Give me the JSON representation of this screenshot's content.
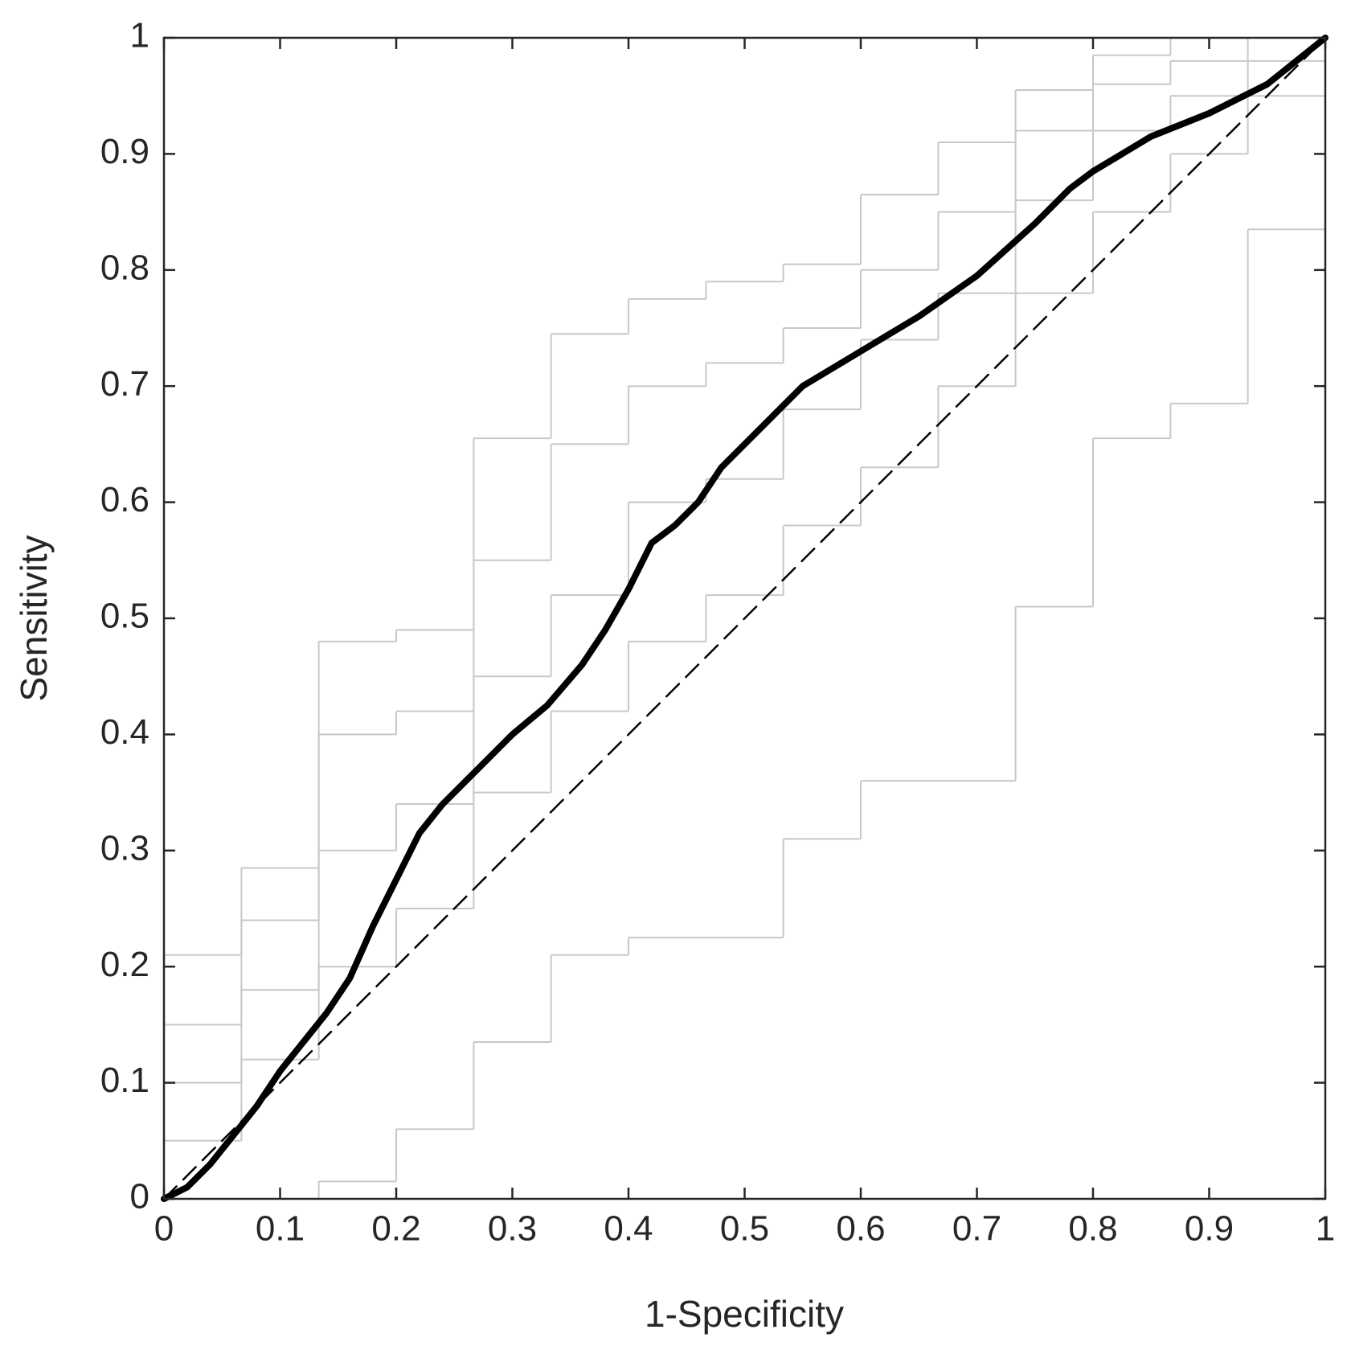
{
  "chart_data": {
    "type": "line",
    "xlabel": "1-Specificity",
    "ylabel": "Sensitivity",
    "xlim": [
      0,
      1
    ],
    "ylim": [
      0,
      1
    ],
    "xticks": [
      0,
      0.1,
      0.2,
      0.3,
      0.4,
      0.5,
      0.6,
      0.7,
      0.8,
      0.9,
      1
    ],
    "yticks": [
      0,
      0.1,
      0.2,
      0.3,
      0.4,
      0.5,
      0.6,
      0.7,
      0.8,
      0.9,
      1
    ],
    "series": [
      {
        "color": "#c8c8c8",
        "style": "step",
        "x": [
          0,
          0.0667,
          0.1333,
          0.2,
          0.2667,
          0.3333,
          0.4,
          0.4667,
          0.5333,
          0.6,
          0.6667,
          0.7333,
          0.8,
          0.8667,
          0.9333
        ],
        "values": [
          0.21,
          0.285,
          0.48,
          0.49,
          0.655,
          0.745,
          0.775,
          0.79,
          0.805,
          0.865,
          0.91,
          0.955,
          0.985,
          1,
          1
        ]
      },
      {
        "color": "#c8c8c8",
        "style": "step",
        "x": [
          0,
          0.0667,
          0.1333,
          0.2,
          0.2667,
          0.3333,
          0.4,
          0.4667,
          0.5333,
          0.6,
          0.6667,
          0.7333,
          0.8,
          0.8667,
          0.9333
        ],
        "values": [
          0,
          0,
          0.015,
          0.06,
          0.135,
          0.21,
          0.225,
          0.225,
          0.31,
          0.36,
          0.36,
          0.51,
          0.655,
          0.685,
          0.835
        ]
      },
      {
        "color": "#c8c8c8",
        "style": "step",
        "x": [
          0,
          0.0667,
          0.1333,
          0.2,
          0.2667,
          0.3333,
          0.4,
          0.4667,
          0.5333,
          0.6,
          0.6667,
          0.7333,
          0.8,
          0.8667,
          0.9333
        ],
        "values": [
          0.1,
          0.18,
          0.3,
          0.34,
          0.45,
          0.52,
          0.6,
          0.62,
          0.68,
          0.74,
          0.78,
          0.86,
          0.92,
          0.95,
          0.98
        ]
      },
      {
        "color": "#c8c8c8",
        "style": "step",
        "x": [
          0,
          0.0667,
          0.1333,
          0.2,
          0.2667,
          0.3333,
          0.4,
          0.4667,
          0.5333,
          0.6,
          0.6667,
          0.7333,
          0.8,
          0.8667,
          0.9333
        ],
        "values": [
          0.05,
          0.12,
          0.2,
          0.25,
          0.35,
          0.42,
          0.48,
          0.52,
          0.58,
          0.63,
          0.7,
          0.78,
          0.85,
          0.9,
          0.95
        ]
      },
      {
        "color": "#c8c8c8",
        "style": "step",
        "x": [
          0,
          0.0667,
          0.1333,
          0.2,
          0.2667,
          0.3333,
          0.4,
          0.4667,
          0.5333,
          0.6,
          0.6667,
          0.7333,
          0.8,
          0.8667,
          0.9333
        ],
        "values": [
          0.15,
          0.24,
          0.4,
          0.42,
          0.55,
          0.65,
          0.7,
          0.72,
          0.75,
          0.8,
          0.85,
          0.92,
          0.96,
          0.98,
          1
        ]
      },
      {
        "color": "#000000",
        "style": "dashed",
        "x": [
          0,
          1
        ],
        "values": [
          0,
          1
        ]
      },
      {
        "color": "#000000",
        "style": "solid",
        "x": [
          0,
          0.02,
          0.04,
          0.06,
          0.08,
          0.1,
          0.12,
          0.14,
          0.16,
          0.18,
          0.2,
          0.22,
          0.24,
          0.26,
          0.28,
          0.3,
          0.33,
          0.36,
          0.38,
          0.4,
          0.42,
          0.44,
          0.46,
          0.48,
          0.5,
          0.52,
          0.55,
          0.6,
          0.65,
          0.7,
          0.75,
          0.78,
          0.8,
          0.85,
          0.9,
          0.95,
          1
        ],
        "values": [
          0,
          0.01,
          0.03,
          0.055,
          0.08,
          0.11,
          0.135,
          0.16,
          0.19,
          0.235,
          0.275,
          0.315,
          0.34,
          0.36,
          0.38,
          0.4,
          0.425,
          0.46,
          0.49,
          0.525,
          0.565,
          0.58,
          0.6,
          0.63,
          0.65,
          0.67,
          0.7,
          0.73,
          0.76,
          0.795,
          0.84,
          0.87,
          0.885,
          0.915,
          0.935,
          0.96,
          1
        ]
      }
    ]
  }
}
